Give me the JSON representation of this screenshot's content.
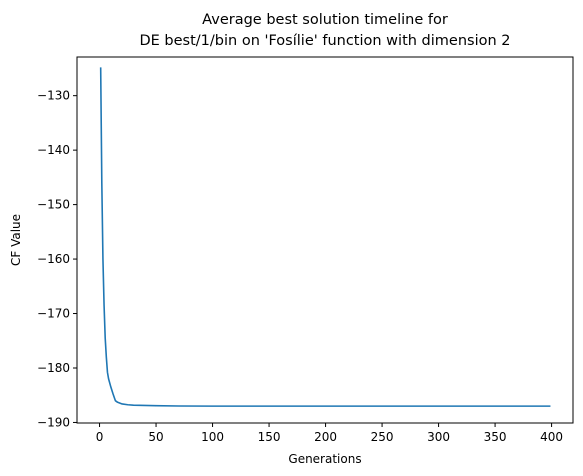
{
  "chart_data": {
    "type": "line",
    "title_lines": [
      "Average best solution timeline for",
      "DE best/1/bin on 'Fosílie' function with dimension 2"
    ],
    "xlabel": "Generations",
    "ylabel": "CF Value",
    "xlim": [
      -19.95,
      418.95
    ],
    "ylim": [
      -190.1,
      -122.9
    ],
    "xticks": [
      0,
      50,
      100,
      150,
      200,
      250,
      300,
      350,
      400
    ],
    "yticks": [
      -130,
      -140,
      -150,
      -160,
      -170,
      -180,
      -190
    ],
    "grid": false,
    "line_color": "#1f77b4",
    "series": [
      {
        "x": [
          1,
          2,
          3,
          4,
          5,
          6,
          7,
          8,
          10,
          12,
          14,
          16,
          20,
          25,
          30,
          40,
          50,
          70,
          100,
          150,
          200,
          250,
          300,
          350,
          399
        ],
        "y": [
          -124.8,
          -146,
          -160,
          -168.5,
          -174.5,
          -178,
          -180.8,
          -182,
          -183.5,
          -184.8,
          -186.0,
          -186.3,
          -186.6,
          -186.75,
          -186.82,
          -186.88,
          -186.92,
          -186.98,
          -187.0,
          -187.0,
          -187.0,
          -187.0,
          -187.0,
          -187.0,
          -187.0
        ]
      }
    ]
  }
}
